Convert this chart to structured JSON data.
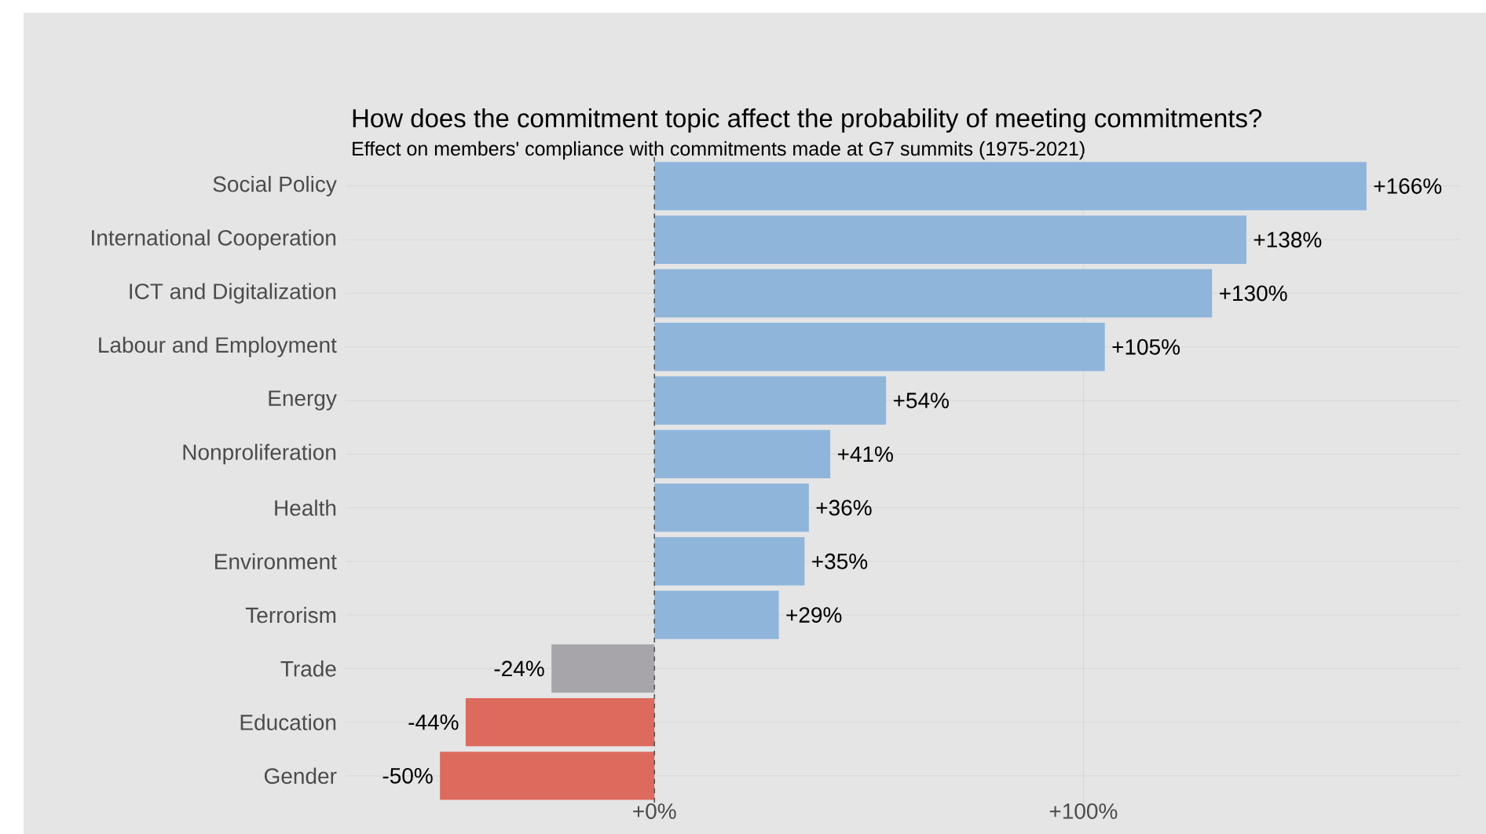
{
  "chart_data": {
    "type": "bar",
    "orientation": "horizontal",
    "title": "How does the commitment topic affect the probability of meeting commitments?",
    "subtitle": "Effect on members' compliance with commitments made at G7 summits (1975-2021)",
    "categories": [
      "Social Policy",
      "International Cooperation",
      "ICT and Digitalization",
      "Labour and Employment",
      "Energy",
      "Nonproliferation",
      "Health",
      "Environment",
      "Terrorism",
      "Trade",
      "Education",
      "Gender"
    ],
    "values": [
      166,
      138,
      130,
      105,
      54,
      41,
      36,
      35,
      29,
      -24,
      -44,
      -50
    ],
    "value_labels": [
      "+166%",
      "+138%",
      "+130%",
      "+105%",
      "+54%",
      "+41%",
      "+36%",
      "+35%",
      "+29%",
      "-24%",
      "-44%",
      "-50%"
    ],
    "colors": [
      "#8fb5db",
      "#8fb5db",
      "#8fb5db",
      "#8fb5db",
      "#8fb5db",
      "#8fb5db",
      "#8fb5db",
      "#8fb5db",
      "#8fb5db",
      "#a7a5aa",
      "#dc6b5e",
      "#dc6b5e"
    ],
    "xlim": [
      -72,
      188
    ],
    "xticks": [
      {
        "value": 0,
        "label": "+0%"
      },
      {
        "value": 100,
        "label": "+100%"
      }
    ],
    "grid": true,
    "ref_lines": [
      {
        "axis": "x",
        "value": 0,
        "line_style": "dashed",
        "color": "#555555"
      }
    ]
  }
}
